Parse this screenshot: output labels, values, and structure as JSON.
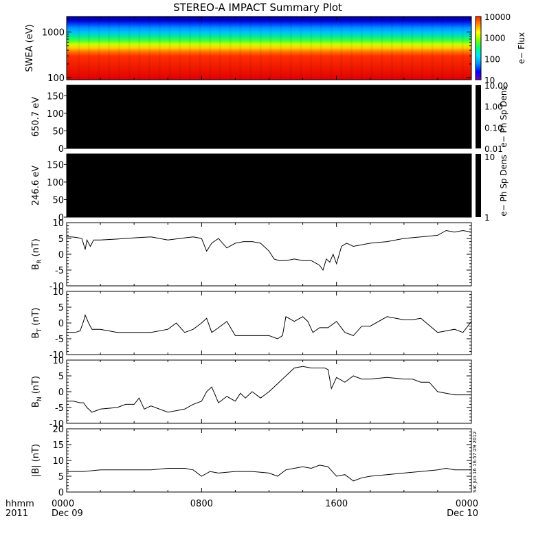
{
  "title": "STEREO-A IMPACT Summary Plot",
  "stamp": "Sat Jun 16 16:57:29 2012",
  "bottom_left": {
    "line1": "hhmm",
    "line2": "2011"
  },
  "chart_data": [
    {
      "type": "heatmap",
      "id": "swea",
      "ylabel": "SWEA (eV)",
      "yscale": "log",
      "ylim": [
        90,
        2200
      ],
      "yticks": [
        {
          "v": 100,
          "t": "100"
        },
        {
          "v": 1000,
          "t": "1000"
        }
      ],
      "colorbar": {
        "label": "e− Flux",
        "scale": "log",
        "range": [
          10,
          10000
        ],
        "ticks": [
          "10",
          "100",
          "1000",
          "10000"
        ]
      },
      "description_levels_eV": {
        "red_below": 300,
        "yellow": 450,
        "green": 650,
        "cyan": 1000,
        "blue": 1500,
        "dark_blue_above": 1800
      },
      "colors": [
        "#0000c8",
        "#0060ff",
        "#00c0ff",
        "#00e8a0",
        "#40ff40",
        "#c8ff00",
        "#ffd000",
        "#ff8000",
        "#ff3000",
        "#e00000"
      ]
    },
    {
      "type": "heatmap",
      "id": "pad650",
      "ylabel": "650.7 eV",
      "ylim": [
        0,
        180
      ],
      "yticks": [
        "0",
        "50",
        "100",
        "150"
      ],
      "fill": "#000000",
      "colorbar": {
        "label": "e− Ph Sp Dens",
        "scale": "log",
        "ticks": [
          "0.01",
          "0.10",
          "1.00",
          "10.00"
        ]
      }
    },
    {
      "type": "heatmap",
      "id": "pad246",
      "ylabel": "246.6 eV",
      "ylim": [
        0,
        180
      ],
      "yticks": [
        "0",
        "50",
        "100",
        "150"
      ],
      "fill": "#000000",
      "colorbar": {
        "label": "e− Ph Sp Dens",
        "scale": "log",
        "ticks": [
          "1",
          "10"
        ]
      }
    },
    {
      "type": "line",
      "id": "br",
      "ylabel": "B",
      "ylabel_sub": "R",
      "ylabel_unit": " (nT)",
      "ylim": [
        -10,
        10
      ],
      "yticks": [
        "-10",
        "-5",
        "0",
        "5",
        "10"
      ],
      "x": [
        0,
        0.3,
        0.6,
        0.9,
        1.1,
        1.2,
        1.4,
        1.6,
        2,
        3,
        4,
        5,
        6,
        7,
        7.5,
        8,
        8.3,
        8.6,
        9,
        9.5,
        10,
        10.5,
        11,
        11.5,
        12,
        12.3,
        12.6,
        13,
        13.5,
        14,
        14.5,
        15,
        15.2,
        15.4,
        15.6,
        15.8,
        16,
        16.3,
        16.6,
        17,
        18,
        19,
        20,
        21,
        22,
        22.5,
        23,
        23.5,
        24
      ],
      "y": [
        5.5,
        5.5,
        5.3,
        5.0,
        1.5,
        4.5,
        2.5,
        4.5,
        4.5,
        4.8,
        5.2,
        5.5,
        4.5,
        5.2,
        5.5,
        5.0,
        1.0,
        3.5,
        5.0,
        2.0,
        3.5,
        4.0,
        4.0,
        3.5,
        1.0,
        -1.5,
        -2.0,
        -2.0,
        -1.5,
        -2.0,
        -2.0,
        -3.5,
        -5.0,
        -1.5,
        -2.5,
        0,
        -3.0,
        2.5,
        3.5,
        2.5,
        3.5,
        4.0,
        5.0,
        5.5,
        6.0,
        7.5,
        7.0,
        7.5,
        7.0
      ],
      "color": "#000000"
    },
    {
      "type": "line",
      "id": "bt",
      "ylabel": "B",
      "ylabel_sub": "T",
      "ylabel_unit": " (nT)",
      "ylim": [
        -10,
        10
      ],
      "yticks": [
        "-10",
        "-5",
        "0",
        "5",
        "10"
      ],
      "x": [
        0,
        0.5,
        0.8,
        1.0,
        1.1,
        1.3,
        1.5,
        2,
        3,
        4,
        5,
        6,
        6.5,
        7,
        7.5,
        8,
        8.3,
        8.6,
        9,
        9.5,
        10,
        11,
        12,
        12.5,
        12.8,
        13,
        13.5,
        14,
        14.3,
        14.6,
        15,
        15.5,
        16,
        16.5,
        17,
        17.5,
        18,
        19,
        19.5,
        20,
        20.5,
        21,
        22,
        22.5,
        23,
        23.5,
        24
      ],
      "y": [
        -3.0,
        -3.0,
        -2.5,
        0.5,
        2.5,
        0,
        -2.0,
        -2.0,
        -3.0,
        -3.0,
        -3.0,
        -2.0,
        0,
        -3.0,
        -2.0,
        0,
        1.5,
        -3.0,
        -1.5,
        0.5,
        -4.0,
        -4.0,
        -4.0,
        -5.0,
        -4.0,
        2.0,
        0.5,
        2.0,
        0.5,
        -3.0,
        -1.5,
        -1.5,
        0.5,
        -3.0,
        -4.0,
        -1.0,
        -1.0,
        2.0,
        1.5,
        1.0,
        1.0,
        1.5,
        -3.0,
        -2.5,
        -2.0,
        -3.0,
        0.5
      ],
      "color": "#000000"
    },
    {
      "type": "line",
      "id": "bn",
      "ylabel": "B",
      "ylabel_sub": "N",
      "ylabel_unit": " (nT)",
      "ylim": [
        -10,
        10
      ],
      "yticks": [
        "-10",
        "-5",
        "0",
        "5",
        "10"
      ],
      "x": [
        0,
        0.4,
        0.8,
        1.0,
        1.2,
        1.5,
        2,
        3,
        3.5,
        4,
        4.3,
        4.6,
        5,
        6,
        7,
        7.5,
        8,
        8.3,
        8.6,
        9,
        9.5,
        10,
        10.3,
        10.6,
        11,
        11.5,
        12,
        12.5,
        13,
        13.5,
        14,
        14.5,
        15,
        15.3,
        15.5,
        15.7,
        16,
        16.5,
        17,
        17.5,
        18,
        19,
        20,
        20.5,
        21,
        21.5,
        22,
        22.5,
        23,
        23.5,
        24
      ],
      "y": [
        -3.0,
        -3.0,
        -3.5,
        -3.5,
        -5.0,
        -6.5,
        -5.5,
        -5.0,
        -4.0,
        -4.0,
        -2.0,
        -5.5,
        -4.5,
        -6.5,
        -5.5,
        -4.0,
        -3.0,
        0,
        1.5,
        -3.5,
        -1.5,
        -3.0,
        -0.5,
        -2.0,
        0,
        -2.0,
        0,
        2.5,
        5.0,
        7.5,
        8.0,
        7.5,
        7.5,
        7.5,
        7.0,
        1.0,
        4.5,
        3.0,
        5.0,
        4.0,
        4.0,
        4.5,
        4.0,
        4.0,
        3.0,
        3.0,
        0,
        -0.5,
        -1.0,
        -1.0,
        -1.0
      ],
      "color": "#000000"
    },
    {
      "type": "line",
      "id": "bmag",
      "ylabel": "|B| (nT)",
      "ylim": [
        0,
        20
      ],
      "yticks": [
        "0",
        "5",
        "10",
        "15",
        "20"
      ],
      "x": [
        0,
        1,
        2,
        3,
        4,
        5,
        6,
        7,
        7.5,
        8,
        8.5,
        9,
        10,
        11,
        12,
        12.5,
        13,
        13.5,
        14,
        14.5,
        15,
        15.5,
        16,
        16.5,
        17,
        17.5,
        18,
        19,
        20,
        21,
        22,
        22.5,
        23,
        23.5,
        24
      ],
      "y": [
        6.5,
        6.5,
        7.0,
        7.0,
        7.0,
        7.0,
        7.5,
        7.5,
        7.0,
        5.0,
        6.5,
        6.0,
        6.5,
        6.5,
        6.0,
        5.0,
        7.0,
        7.5,
        8.0,
        7.5,
        8.5,
        8.0,
        5.0,
        5.5,
        3.5,
        4.5,
        5.0,
        5.5,
        6.0,
        6.5,
        7.0,
        7.5,
        7.0,
        7.0,
        7.0
      ],
      "color": "#000000"
    }
  ],
  "x_axis": {
    "xlim": [
      0,
      24
    ],
    "major_ticks": [
      {
        "x": 0,
        "label": "0000",
        "date": "Dec 09"
      },
      {
        "x": 8,
        "label": "0800",
        "date": ""
      },
      {
        "x": 16,
        "label": "1600",
        "date": ""
      },
      {
        "x": 24,
        "label": "0000",
        "date": "Dec 10"
      }
    ]
  }
}
